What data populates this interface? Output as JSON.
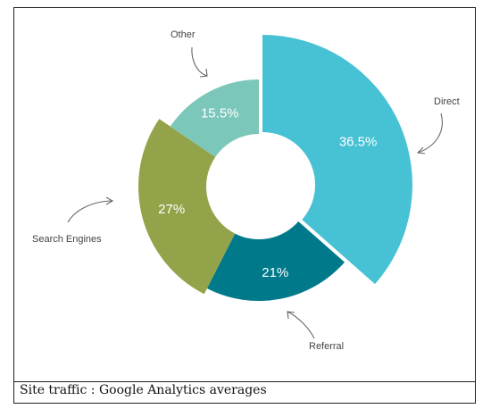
{
  "chart_data": {
    "type": "pie",
    "subtype": "donut-with-variable-radius",
    "categories": [
      "Direct",
      "Referral",
      "Search Engines",
      "Other"
    ],
    "values": [
      36.5,
      21,
      27,
      15.5
    ],
    "value_labels": [
      "36.5%",
      "21%",
      "27%",
      "15.5%"
    ],
    "colors": [
      "#47c2d4",
      "#007a8a",
      "#93a349",
      "#7bc7b9"
    ],
    "legend": "callouts"
  },
  "caption": "Site traffic : Google Analytics averages"
}
